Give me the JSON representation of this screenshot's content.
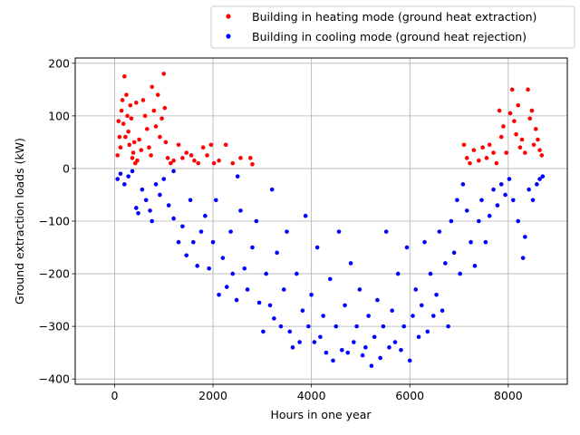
{
  "chart_data": {
    "type": "scatter",
    "title": "",
    "xlabel": "Hours in one year",
    "ylabel": "Ground extraction loads (kW)",
    "xlim": [
      -800,
      9200
    ],
    "ylim": [
      -410,
      210
    ],
    "xticks": [
      0,
      2000,
      4000,
      6000,
      8000
    ],
    "yticks": [
      -400,
      -300,
      -200,
      -100,
      0,
      100,
      200
    ],
    "grid": true,
    "legend_position": "top-right, outside plot",
    "series": [
      {
        "name": "Building in heating mode (ground heat extraction)",
        "color": "#ff0000",
        "points": [
          [
            60,
            25
          ],
          [
            80,
            90
          ],
          [
            100,
            60
          ],
          [
            120,
            40
          ],
          [
            140,
            110
          ],
          [
            160,
            130
          ],
          [
            180,
            85
          ],
          [
            200,
            175
          ],
          [
            220,
            60
          ],
          [
            240,
            140
          ],
          [
            260,
            100
          ],
          [
            280,
            70
          ],
          [
            300,
            45
          ],
          [
            320,
            120
          ],
          [
            340,
            95
          ],
          [
            360,
            20
          ],
          [
            380,
            30
          ],
          [
            400,
            50
          ],
          [
            420,
            10
          ],
          [
            440,
            125
          ],
          [
            460,
            15
          ],
          [
            500,
            55
          ],
          [
            540,
            35
          ],
          [
            580,
            130
          ],
          [
            620,
            100
          ],
          [
            660,
            75
          ],
          [
            700,
            40
          ],
          [
            740,
            25
          ],
          [
            760,
            155
          ],
          [
            800,
            110
          ],
          [
            840,
            80
          ],
          [
            880,
            140
          ],
          [
            920,
            60
          ],
          [
            960,
            95
          ],
          [
            1000,
            180
          ],
          [
            1020,
            115
          ],
          [
            1040,
            50
          ],
          [
            1080,
            20
          ],
          [
            1140,
            10
          ],
          [
            1200,
            15
          ],
          [
            1300,
            45
          ],
          [
            1380,
            20
          ],
          [
            1460,
            30
          ],
          [
            1560,
            25
          ],
          [
            1620,
            15
          ],
          [
            1700,
            10
          ],
          [
            1800,
            40
          ],
          [
            1880,
            25
          ],
          [
            1960,
            45
          ],
          [
            2020,
            10
          ],
          [
            2120,
            15
          ],
          [
            2260,
            45
          ],
          [
            2400,
            10
          ],
          [
            2560,
            20
          ],
          [
            2760,
            20
          ],
          [
            2800,
            8
          ],
          [
            7100,
            45
          ],
          [
            7160,
            20
          ],
          [
            7220,
            10
          ],
          [
            7300,
            35
          ],
          [
            7400,
            15
          ],
          [
            7480,
            40
          ],
          [
            7560,
            20
          ],
          [
            7620,
            45
          ],
          [
            7700,
            30
          ],
          [
            7760,
            10
          ],
          [
            7820,
            110
          ],
          [
            7860,
            60
          ],
          [
            7900,
            80
          ],
          [
            7960,
            30
          ],
          [
            8040,
            105
          ],
          [
            8080,
            150
          ],
          [
            8120,
            90
          ],
          [
            8160,
            65
          ],
          [
            8200,
            120
          ],
          [
            8240,
            40
          ],
          [
            8280,
            55
          ],
          [
            8340,
            30
          ],
          [
            8400,
            150
          ],
          [
            8440,
            95
          ],
          [
            8480,
            110
          ],
          [
            8520,
            45
          ],
          [
            8560,
            75
          ],
          [
            8600,
            55
          ],
          [
            8640,
            35
          ],
          [
            8680,
            25
          ]
        ]
      },
      {
        "name": "Building in cooling mode (ground heat rejection)",
        "color": "#0000ff",
        "points": [
          [
            60,
            -20
          ],
          [
            120,
            -10
          ],
          [
            200,
            -30
          ],
          [
            280,
            -15
          ],
          [
            360,
            -5
          ],
          [
            440,
            -75
          ],
          [
            480,
            -85
          ],
          [
            560,
            -40
          ],
          [
            640,
            -60
          ],
          [
            720,
            -80
          ],
          [
            760,
            -100
          ],
          [
            840,
            -30
          ],
          [
            920,
            -50
          ],
          [
            1000,
            -20
          ],
          [
            1100,
            -70
          ],
          [
            1200,
            -95
          ],
          [
            1300,
            -140
          ],
          [
            1380,
            -110
          ],
          [
            1460,
            -165
          ],
          [
            1540,
            -60
          ],
          [
            1600,
            -140
          ],
          [
            1680,
            -185
          ],
          [
            1760,
            -120
          ],
          [
            1840,
            -90
          ],
          [
            1920,
            -190
          ],
          [
            2000,
            -140
          ],
          [
            2060,
            -60
          ],
          [
            2120,
            -240
          ],
          [
            2200,
            -170
          ],
          [
            2280,
            -225
          ],
          [
            2360,
            -120
          ],
          [
            2400,
            -200
          ],
          [
            2480,
            -250
          ],
          [
            2560,
            -80
          ],
          [
            2640,
            -190
          ],
          [
            2700,
            -230
          ],
          [
            2800,
            -150
          ],
          [
            2880,
            -100
          ],
          [
            2940,
            -255
          ],
          [
            3020,
            -310
          ],
          [
            3080,
            -200
          ],
          [
            3160,
            -260
          ],
          [
            3240,
            -285
          ],
          [
            3300,
            -160
          ],
          [
            3380,
            -300
          ],
          [
            3440,
            -230
          ],
          [
            3500,
            -120
          ],
          [
            3560,
            -310
          ],
          [
            3620,
            -340
          ],
          [
            3700,
            -200
          ],
          [
            3760,
            -330
          ],
          [
            3820,
            -270
          ],
          [
            3880,
            -90
          ],
          [
            3940,
            -300
          ],
          [
            4000,
            -240
          ],
          [
            4060,
            -330
          ],
          [
            4120,
            -150
          ],
          [
            4180,
            -320
          ],
          [
            4240,
            -280
          ],
          [
            4300,
            -350
          ],
          [
            4380,
            -210
          ],
          [
            4440,
            -365
          ],
          [
            4500,
            -300
          ],
          [
            4560,
            -120
          ],
          [
            4620,
            -345
          ],
          [
            4680,
            -260
          ],
          [
            4740,
            -350
          ],
          [
            4800,
            -180
          ],
          [
            4860,
            -330
          ],
          [
            4920,
            -300
          ],
          [
            4980,
            -230
          ],
          [
            5040,
            -355
          ],
          [
            5100,
            -340
          ],
          [
            5160,
            -280
          ],
          [
            5220,
            -375
          ],
          [
            5280,
            -320
          ],
          [
            5340,
            -250
          ],
          [
            5400,
            -360
          ],
          [
            5460,
            -300
          ],
          [
            5520,
            -120
          ],
          [
            5580,
            -340
          ],
          [
            5640,
            -270
          ],
          [
            5700,
            -330
          ],
          [
            5760,
            -200
          ],
          [
            5820,
            -345
          ],
          [
            5880,
            -300
          ],
          [
            5940,
            -150
          ],
          [
            6000,
            -365
          ],
          [
            6060,
            -280
          ],
          [
            6120,
            -230
          ],
          [
            6180,
            -320
          ],
          [
            6240,
            -260
          ],
          [
            6300,
            -140
          ],
          [
            6360,
            -310
          ],
          [
            6420,
            -200
          ],
          [
            6480,
            -280
          ],
          [
            6540,
            -240
          ],
          [
            6600,
            -120
          ],
          [
            6660,
            -270
          ],
          [
            6720,
            -180
          ],
          [
            6780,
            -300
          ],
          [
            6840,
            -100
          ],
          [
            6900,
            -160
          ],
          [
            6960,
            -60
          ],
          [
            7020,
            -200
          ],
          [
            7080,
            -30
          ],
          [
            7160,
            -80
          ],
          [
            7240,
            -140
          ],
          [
            7320,
            -185
          ],
          [
            7400,
            -100
          ],
          [
            7460,
            -60
          ],
          [
            7540,
            -140
          ],
          [
            7620,
            -90
          ],
          [
            7700,
            -40
          ],
          [
            7780,
            -70
          ],
          [
            7860,
            -30
          ],
          [
            7940,
            -50
          ],
          [
            8020,
            -20
          ],
          [
            8100,
            -60
          ],
          [
            8200,
            -100
          ],
          [
            8300,
            -170
          ],
          [
            8340,
            -130
          ],
          [
            8420,
            -40
          ],
          [
            8500,
            -60
          ],
          [
            8580,
            -30
          ],
          [
            8640,
            -20
          ],
          [
            8700,
            -15
          ],
          [
            1200,
            -5
          ],
          [
            2500,
            -15
          ],
          [
            3200,
            -40
          ]
        ]
      }
    ]
  }
}
